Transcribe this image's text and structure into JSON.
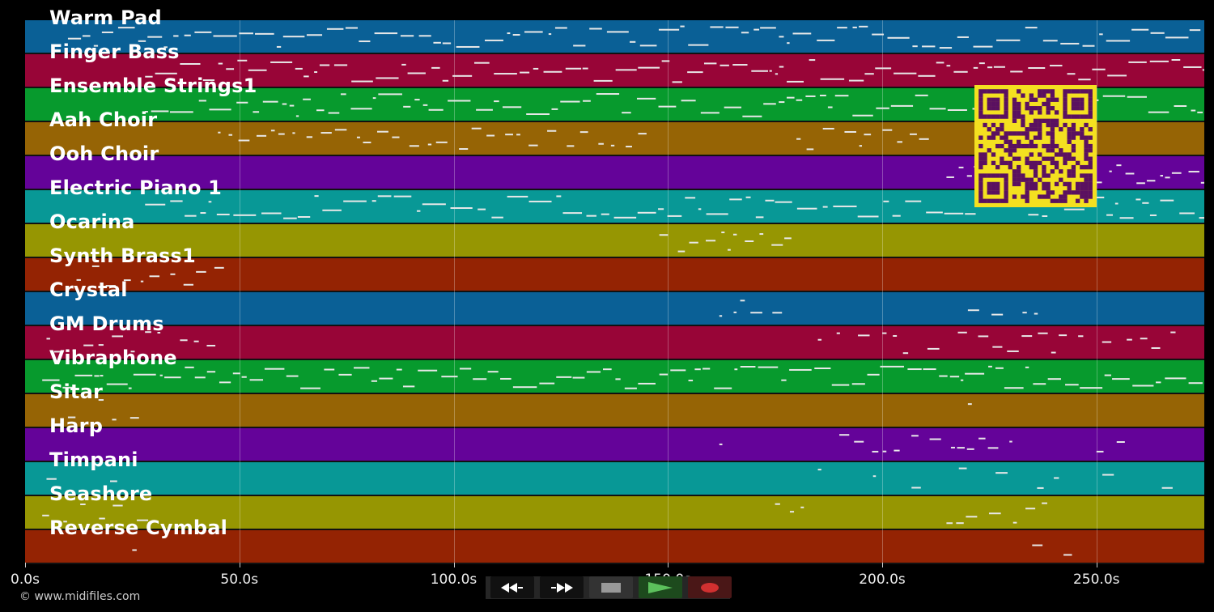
{
  "tracks": [
    {
      "name": "Warm Pad",
      "color": "#0a6096"
    },
    {
      "name": "Finger Bass",
      "color": "#980537"
    },
    {
      "name": "Ensemble Strings1",
      "color": "#079a2d"
    },
    {
      "name": "Aah Choir",
      "color": "#966405"
    },
    {
      "name": "Ooh Choir",
      "color": "#640399"
    },
    {
      "name": "Electric Piano 1",
      "color": "#089896"
    },
    {
      "name": "Ocarina",
      "color": "#969602"
    },
    {
      "name": "Synth Brass1",
      "color": "#942303"
    },
    {
      "name": "Crystal",
      "color": "#0a6096"
    },
    {
      "name": "GM Drums",
      "color": "#980537"
    },
    {
      "name": "Vibraphone",
      "color": "#079a2d"
    },
    {
      "name": "Sitar",
      "color": "#966405"
    },
    {
      "name": "Harp",
      "color": "#640399"
    },
    {
      "name": "Timpani",
      "color": "#089896"
    },
    {
      "name": "Seashore",
      "color": "#969602"
    },
    {
      "name": "Reverse Cymbal",
      "color": "#942303"
    }
  ],
  "time_axis": {
    "max_seconds": 275,
    "ticks": [
      "0.0s",
      "50.0s",
      "100.0s",
      "150.0s",
      "200.0s",
      "250.0s"
    ],
    "tick_values": [
      0,
      50,
      100,
      150,
      200,
      250
    ]
  },
  "transport": {
    "rewind_icon": "rewind-icon",
    "fast_forward_icon": "fast-forward-icon",
    "stop_icon": "stop-icon",
    "play_icon": "play-icon",
    "record_icon": "record-icon",
    "play_color": "#5cc05c",
    "record_color": "#d03030"
  },
  "qr": {
    "fg": "#5a1060",
    "bg": "#f4e020"
  },
  "copyright": "© www.midifiles.com"
}
